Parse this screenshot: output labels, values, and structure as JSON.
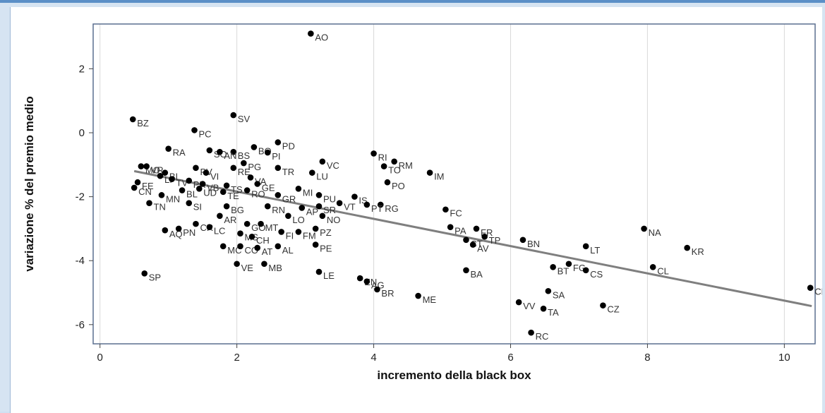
{
  "chart_data": {
    "type": "scatter",
    "title": "",
    "xlabel": "incremento della black box",
    "ylabel": "variazione % del premio medio",
    "xlim": [
      -0.1,
      10.45
    ],
    "ylim": [
      -6.6,
      3.4
    ],
    "xticks": [
      0,
      2,
      4,
      6,
      8,
      10
    ],
    "xtick_labels": [
      "0",
      "2",
      "4",
      "6",
      "8",
      "10"
    ],
    "yticks": [
      2,
      0,
      -2,
      -4,
      -6
    ],
    "ytick_labels": [
      "2",
      "0",
      "-2",
      "-4",
      "-6"
    ],
    "grid": "vertical-only",
    "legend": "none",
    "colors": {
      "point": "#000000",
      "fit_line": "#7f7f7f",
      "grid": "#d9d9d9",
      "frame": "#5a6f8f"
    },
    "fit_line": {
      "x": [
        0.5,
        10.4
      ],
      "y": [
        -1.2,
        -5.42
      ]
    },
    "points": [
      {
        "label": "AO",
        "x": 3.08,
        "y": 3.1
      },
      {
        "label": "BZ",
        "x": 0.48,
        "y": 0.42
      },
      {
        "label": "PC",
        "x": 1.38,
        "y": 0.08
      },
      {
        "label": "SV",
        "x": 1.95,
        "y": 0.55
      },
      {
        "label": "BS",
        "x": 1.95,
        "y": -0.6
      },
      {
        "label": "BO",
        "x": 2.25,
        "y": -0.45
      },
      {
        "label": "PD",
        "x": 2.6,
        "y": -0.3
      },
      {
        "label": "RA",
        "x": 1.0,
        "y": -0.5
      },
      {
        "label": "SO",
        "x": 1.6,
        "y": -0.55
      },
      {
        "label": "AN",
        "x": 1.75,
        "y": -0.6
      },
      {
        "label": "PG",
        "x": 2.1,
        "y": -0.95
      },
      {
        "label": "PI",
        "x": 2.45,
        "y": -0.62
      },
      {
        "label": "MO",
        "x": 0.6,
        "y": -1.05
      },
      {
        "label": "VR",
        "x": 0.68,
        "y": -1.05
      },
      {
        "label": "BI",
        "x": 0.95,
        "y": -1.25
      },
      {
        "label": "PV",
        "x": 1.4,
        "y": -1.1
      },
      {
        "label": "VI",
        "x": 1.55,
        "y": -1.25
      },
      {
        "label": "RE",
        "x": 1.95,
        "y": -1.1
      },
      {
        "label": "TR",
        "x": 2.6,
        "y": -1.1
      },
      {
        "label": "LU",
        "x": 3.1,
        "y": -1.25
      },
      {
        "label": "VC",
        "x": 3.25,
        "y": -0.9
      },
      {
        "label": "RI",
        "x": 4.0,
        "y": -0.65
      },
      {
        "label": "RM",
        "x": 4.3,
        "y": -0.9
      },
      {
        "label": "TO",
        "x": 4.15,
        "y": -1.05
      },
      {
        "label": "PO",
        "x": 4.2,
        "y": -1.55
      },
      {
        "label": "IM",
        "x": 4.82,
        "y": -1.25
      },
      {
        "label": "FE",
        "x": 0.55,
        "y": -1.55
      },
      {
        "label": "CN",
        "x": 0.5,
        "y": -1.72
      },
      {
        "label": "LI",
        "x": 0.88,
        "y": -1.35
      },
      {
        "label": "TV",
        "x": 1.05,
        "y": -1.45
      },
      {
        "label": "PR",
        "x": 1.3,
        "y": -1.5
      },
      {
        "label": "VA",
        "x": 2.2,
        "y": -1.4
      },
      {
        "label": "GE",
        "x": 2.3,
        "y": -1.6
      },
      {
        "label": "MI",
        "x": 2.9,
        "y": -1.75
      },
      {
        "label": "VB",
        "x": 1.5,
        "y": -1.6
      },
      {
        "label": "TS",
        "x": 1.85,
        "y": -1.65
      },
      {
        "label": "RO",
        "x": 2.15,
        "y": -1.8
      },
      {
        "label": "BL",
        "x": 1.2,
        "y": -1.8
      },
      {
        "label": "UD",
        "x": 1.45,
        "y": -1.75
      },
      {
        "label": "TE",
        "x": 1.8,
        "y": -1.85
      },
      {
        "label": "GR",
        "x": 2.6,
        "y": -1.95
      },
      {
        "label": "PU",
        "x": 3.2,
        "y": -1.95
      },
      {
        "label": "IS",
        "x": 3.72,
        "y": -2.0
      },
      {
        "label": "RG",
        "x": 4.1,
        "y": -2.25
      },
      {
        "label": "MN",
        "x": 0.9,
        "y": -1.95
      },
      {
        "label": "TN",
        "x": 0.72,
        "y": -2.2
      },
      {
        "label": "SI",
        "x": 1.3,
        "y": -2.2
      },
      {
        "label": "BG",
        "x": 1.85,
        "y": -2.3
      },
      {
        "label": "RN",
        "x": 2.45,
        "y": -2.3
      },
      {
        "label": "AP",
        "x": 2.95,
        "y": -2.35
      },
      {
        "label": "SR",
        "x": 3.2,
        "y": -2.3
      },
      {
        "label": "VT",
        "x": 3.5,
        "y": -2.2
      },
      {
        "label": "PT",
        "x": 3.9,
        "y": -2.25
      },
      {
        "label": "FC",
        "x": 5.05,
        "y": -2.4
      },
      {
        "label": "NO",
        "x": 3.25,
        "y": -2.6
      },
      {
        "label": "AQ",
        "x": 0.95,
        "y": -3.05
      },
      {
        "label": "CR",
        "x": 1.4,
        "y": -2.85
      },
      {
        "label": "AR",
        "x": 1.75,
        "y": -2.6
      },
      {
        "label": "GO",
        "x": 2.15,
        "y": -2.85
      },
      {
        "label": "MT",
        "x": 2.35,
        "y": -2.85
      },
      {
        "label": "LO",
        "x": 2.75,
        "y": -2.6
      },
      {
        "label": "PA",
        "x": 5.12,
        "y": -2.95
      },
      {
        "label": "FR",
        "x": 5.5,
        "y": -3.0
      },
      {
        "label": "PN",
        "x": 1.15,
        "y": -3.0
      },
      {
        "label": "LC",
        "x": 1.6,
        "y": -2.95
      },
      {
        "label": "MS",
        "x": 2.05,
        "y": -3.15
      },
      {
        "label": "FI",
        "x": 2.65,
        "y": -3.1
      },
      {
        "label": "FM",
        "x": 2.9,
        "y": -3.1
      },
      {
        "label": "PZ",
        "x": 3.15,
        "y": -3.0
      },
      {
        "label": "CH",
        "x": 2.22,
        "y": -3.25
      },
      {
        "label": "TP",
        "x": 5.62,
        "y": -3.25
      },
      {
        "label": "BN",
        "x": 6.18,
        "y": -3.35
      },
      {
        "label": "CT",
        "x": 5.35,
        "y": -3.35
      },
      {
        "label": "AV",
        "x": 5.45,
        "y": -3.5
      },
      {
        "label": "PE",
        "x": 3.15,
        "y": -3.5
      },
      {
        "label": "LT",
        "x": 7.1,
        "y": -3.55
      },
      {
        "label": "NA",
        "x": 7.95,
        "y": -3.0
      },
      {
        "label": "KR",
        "x": 8.58,
        "y": -3.6
      },
      {
        "label": "MC",
        "x": 1.8,
        "y": -3.55
      },
      {
        "label": "CO",
        "x": 2.05,
        "y": -3.55
      },
      {
        "label": "AT",
        "x": 2.3,
        "y": -3.6
      },
      {
        "label": "AL",
        "x": 2.6,
        "y": -3.55
      },
      {
        "label": "FG",
        "x": 6.85,
        "y": -4.1
      },
      {
        "label": "BT",
        "x": 6.62,
        "y": -4.2
      },
      {
        "label": "CS",
        "x": 7.1,
        "y": -4.3
      },
      {
        "label": "CL",
        "x": 8.08,
        "y": -4.2
      },
      {
        "label": "SP",
        "x": 0.65,
        "y": -4.4
      },
      {
        "label": "VE",
        "x": 2.0,
        "y": -4.1
      },
      {
        "label": "MB",
        "x": 2.4,
        "y": -4.1
      },
      {
        "label": "LE",
        "x": 3.2,
        "y": -4.35
      },
      {
        "label": "EN",
        "x": 3.8,
        "y": -4.55
      },
      {
        "label": "AG",
        "x": 3.9,
        "y": -4.65
      },
      {
        "label": "BA",
        "x": 5.35,
        "y": -4.3
      },
      {
        "label": "BR",
        "x": 4.05,
        "y": -4.9
      },
      {
        "label": "ME",
        "x": 4.65,
        "y": -5.1
      },
      {
        "label": "SA",
        "x": 6.55,
        "y": -4.95
      },
      {
        "label": "VV",
        "x": 6.12,
        "y": -5.3
      },
      {
        "label": "TA",
        "x": 6.48,
        "y": -5.5
      },
      {
        "label": "CZ",
        "x": 7.35,
        "y": -5.4
      },
      {
        "label": "RC",
        "x": 6.3,
        "y": -6.25
      },
      {
        "label": "CE",
        "x": 10.38,
        "y": -4.85
      }
    ]
  }
}
